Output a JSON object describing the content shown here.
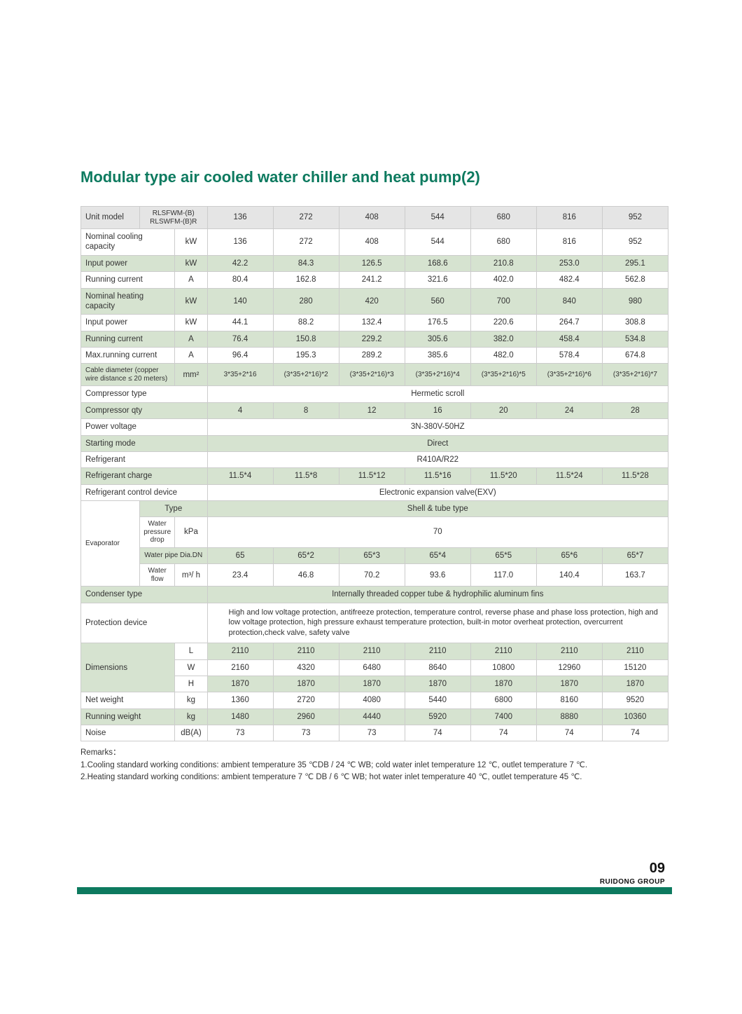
{
  "title": "Modular type air cooled water chiller and heat pump(2)",
  "header": {
    "unit_model": "Unit model",
    "model_lines": "RLSFWM-(B)\nRLSWFM-(B)R",
    "models": [
      "136",
      "272",
      "408",
      "544",
      "680",
      "816",
      "952"
    ]
  },
  "rows": {
    "nominal_cooling": {
      "label": "Nominal cooling capacity",
      "unit": "kW",
      "vals": [
        "136",
        "272",
        "408",
        "544",
        "680",
        "816",
        "952"
      ]
    },
    "input_power_c": {
      "label": "Input power",
      "unit": "kW",
      "vals": [
        "42.2",
        "84.3",
        "126.5",
        "168.6",
        "210.8",
        "253.0",
        "295.1"
      ]
    },
    "running_current_c": {
      "label": "Running current",
      "unit": "A",
      "vals": [
        "80.4",
        "162.8",
        "241.2",
        "321.6",
        "402.0",
        "482.4",
        "562.8"
      ]
    },
    "nominal_heating": {
      "label": "Nominal heating capacity",
      "unit": "kW",
      "vals": [
        "140",
        "280",
        "420",
        "560",
        "700",
        "840",
        "980"
      ]
    },
    "input_power_h": {
      "label": "Input power",
      "unit": "kW",
      "vals": [
        "44.1",
        "88.2",
        "132.4",
        "176.5",
        "220.6",
        "264.7",
        "308.8"
      ]
    },
    "running_current_h": {
      "label": "Running current",
      "unit": "A",
      "vals": [
        "76.4",
        "150.8",
        "229.2",
        "305.6",
        "382.0",
        "458.4",
        "534.8"
      ]
    },
    "max_running": {
      "label": "Max.running current",
      "unit": "A",
      "vals": [
        "96.4",
        "195.3",
        "289.2",
        "385.6",
        "482.0",
        "578.4",
        "674.8"
      ]
    },
    "cable": {
      "label": "Cable diameter (copper wire distance ≤ 20 meters)",
      "unit": "mm²",
      "vals": [
        "3*35+2*16",
        "(3*35+2*16)*2",
        "(3*35+2*16)*3",
        "(3*35+2*16)*4",
        "(3*35+2*16)*5",
        "(3*35+2*16)*6",
        "(3*35+2*16)*7"
      ]
    },
    "comp_type": {
      "label": "Compressor type",
      "span": "Hermetic scroll"
    },
    "comp_qty": {
      "label": "Compressor qty",
      "vals": [
        "4",
        "8",
        "12",
        "16",
        "20",
        "24",
        "28"
      ]
    },
    "power_voltage": {
      "label": "Power voltage",
      "span": "3N-380V-50HZ"
    },
    "starting_mode": {
      "label": "Starting mode",
      "span": "Direct"
    },
    "refrigerant": {
      "label": "Refrigerant",
      "span": "R410A/R22"
    },
    "refrig_charge": {
      "label": "Refrigerant charge",
      "vals": [
        "11.5*4",
        "11.5*8",
        "11.5*12",
        "11.5*16",
        "11.5*20",
        "11.5*24",
        "11.5*28"
      ]
    },
    "refrig_ctrl": {
      "label": "Refrigerant control device",
      "span": "Electronic expansion valve(EXV)"
    },
    "evaporator": {
      "label": "Evaporator"
    },
    "evap_type": {
      "sub": "Type",
      "span": "Shell & tube type"
    },
    "evap_wpd": {
      "sub": "Water pressure drop",
      "unit": "kPa",
      "span": "70"
    },
    "evap_pipe": {
      "sub": "Water pipe Dia.DN",
      "vals": [
        "65",
        "65*2",
        "65*3",
        "65*4",
        "65*5",
        "65*6",
        "65*7"
      ]
    },
    "evap_flow": {
      "sub": "Water flow",
      "unit": "m³/ h",
      "vals": [
        "23.4",
        "46.8",
        "70.2",
        "93.6",
        "117.0",
        "140.4",
        "163.7"
      ]
    },
    "condenser": {
      "label": "Condenser type",
      "span": "Internally threaded copper tube & hydrophilic aluminum fins"
    },
    "protection": {
      "label": "Protection device",
      "span": "High and low voltage protection, antifreeze protection, temperature control, reverse phase and phase loss protection, high and low voltage protection, high pressure exhaust temperature protection, built-in motor overheat protection, overcurrent protection,check valve, safety valve"
    },
    "dimensions": {
      "label": "Dimensions"
    },
    "dim_l": {
      "sub": "L",
      "vals": [
        "2110",
        "2110",
        "2110",
        "2110",
        "2110",
        "2110",
        "2110"
      ]
    },
    "dim_w": {
      "sub": "W",
      "vals": [
        "2160",
        "4320",
        "6480",
        "8640",
        "10800",
        "12960",
        "15120"
      ]
    },
    "dim_h": {
      "sub": "H",
      "vals": [
        "1870",
        "1870",
        "1870",
        "1870",
        "1870",
        "1870",
        "1870"
      ]
    },
    "net_weight": {
      "label": "Net weight",
      "unit": "kg",
      "vals": [
        "1360",
        "2720",
        "4080",
        "5440",
        "6800",
        "8160",
        "9520"
      ]
    },
    "run_weight": {
      "label": "Running weight",
      "unit": "kg",
      "vals": [
        "1480",
        "2960",
        "4440",
        "5920",
        "7400",
        "8880",
        "10360"
      ]
    },
    "noise": {
      "label": "Noise",
      "unit": "dB(A)",
      "vals": [
        "73",
        "73",
        "73",
        "74",
        "74",
        "74",
        "74"
      ]
    }
  },
  "remarks": {
    "title": "Remarks：",
    "line1": "1.Cooling standard working conditions: ambient temperature 35 ℃DB / 24  ℃ WB; cold water inlet temperature 12 ℃, outlet temperature 7 ℃.",
    "line2": "2.Heating standard working conditions: ambient temperature 7  ℃ DB / 6  ℃ WB; hot water inlet temperature 40 ℃, outlet temperature 45 ℃."
  },
  "footer": {
    "page": "09",
    "brand": "RUIDONG GROUP"
  },
  "colors": {
    "accent": "#0d7a5f",
    "green_row": "#d6e3d0",
    "gray": "#e5e5e5",
    "border": "#cccccc"
  }
}
